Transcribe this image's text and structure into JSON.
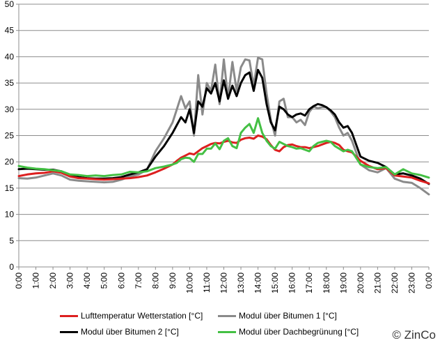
{
  "chart_data": {
    "type": "line",
    "ylim": [
      0,
      50
    ],
    "y_ticks": [
      "0",
      "5",
      "10",
      "15",
      "20",
      "25",
      "30",
      "35",
      "40",
      "45",
      "50"
    ],
    "x_ticks": [
      "0:00",
      "1:00",
      "2:00",
      "3:00",
      "4:00",
      "5:00",
      "6:00",
      "7:00",
      "8:00",
      "9:00",
      "10:00",
      "11:00",
      "12:00",
      "13:00",
      "14:00",
      "15:00",
      "16:00",
      "17:00",
      "18:00",
      "19:00",
      "20:00",
      "21:00",
      "22:00",
      "23:00",
      "0:00"
    ],
    "grid": "horizontal",
    "legend_position": "bottom",
    "x": [
      0,
      0.5,
      1,
      1.5,
      2,
      2.5,
      3,
      3.5,
      4,
      4.5,
      5,
      5.5,
      6,
      6.5,
      7,
      7.5,
      8,
      8.5,
      9,
      9.25,
      9.5,
      9.75,
      10,
      10.25,
      10.5,
      10.75,
      11,
      11.25,
      11.5,
      11.75,
      12,
      12.25,
      12.5,
      12.75,
      13,
      13.25,
      13.5,
      13.75,
      14,
      14.25,
      14.5,
      14.75,
      15,
      15.25,
      15.5,
      15.75,
      16,
      16.25,
      16.5,
      16.75,
      17,
      17.25,
      17.5,
      17.75,
      18,
      18.25,
      18.5,
      18.75,
      19,
      19.25,
      19.5,
      20,
      20.5,
      21,
      21.5,
      22,
      22.5,
      23,
      23.5,
      24
    ],
    "series": [
      {
        "name": "Lufttemperatur Wetterstation [°C]",
        "color": "#dd1f1f",
        "values": [
          17.3,
          17.6,
          17.8,
          17.9,
          18.2,
          17.9,
          17.2,
          16.9,
          16.8,
          16.7,
          16.6,
          16.7,
          16.8,
          16.9,
          17.1,
          17.4,
          18.0,
          18.7,
          19.5,
          20.2,
          20.8,
          21.2,
          21.6,
          21.4,
          22.0,
          22.6,
          23.0,
          23.4,
          23.6,
          23.5,
          23.8,
          24.0,
          23.7,
          23.6,
          24.2,
          24.5,
          24.6,
          24.4,
          25.0,
          24.8,
          24.3,
          23.2,
          22.3,
          22.0,
          22.8,
          23.2,
          23.3,
          23.0,
          22.8,
          22.8,
          22.6,
          22.8,
          23.0,
          23.3,
          23.6,
          23.8,
          23.6,
          23.2,
          22.3,
          22.0,
          21.8,
          20.2,
          19.2,
          18.6,
          18.8,
          17.4,
          17.2,
          17.0,
          16.4,
          15.9
        ]
      },
      {
        "name": "Modul über Bitumen 1 [°C]",
        "color": "#8a8a8a",
        "values": [
          16.9,
          16.8,
          17.0,
          17.4,
          17.8,
          17.4,
          16.6,
          16.4,
          16.3,
          16.2,
          16.1,
          16.2,
          16.6,
          17.2,
          17.6,
          18.5,
          22.0,
          24.5,
          27.5,
          30.0,
          32.5,
          30.2,
          31.5,
          25.0,
          36.5,
          29.0,
          35.0,
          33.5,
          38.5,
          31.0,
          39.5,
          32.0,
          39.0,
          33.5,
          38.0,
          39.5,
          39.3,
          34.5,
          39.8,
          39.5,
          33.0,
          28.0,
          25.0,
          31.5,
          32.0,
          28.5,
          28.5,
          27.5,
          28.0,
          27.0,
          29.5,
          30.5,
          30.2,
          30.4,
          30.4,
          29.6,
          28.5,
          26.5,
          25.0,
          25.5,
          24.0,
          19.5,
          18.4,
          18.0,
          18.8,
          16.8,
          16.2,
          16.0,
          15.0,
          13.8
        ]
      },
      {
        "name": "Modul über Bitumen 2 [°C]",
        "color": "#000000",
        "values": [
          18.6,
          18.7,
          18.6,
          18.5,
          18.5,
          18.2,
          17.3,
          17.1,
          16.9,
          16.8,
          16.8,
          16.9,
          17.1,
          17.6,
          18.0,
          18.6,
          21.0,
          23.0,
          25.5,
          27.0,
          28.5,
          27.5,
          30.0,
          25.5,
          31.5,
          30.5,
          34.0,
          33.0,
          35.0,
          31.5,
          35.5,
          32.0,
          34.5,
          32.5,
          35.0,
          36.5,
          37.0,
          33.5,
          37.5,
          36.0,
          31.0,
          27.5,
          26.0,
          30.5,
          30.0,
          29.0,
          28.5,
          29.0,
          29.2,
          28.8,
          30.0,
          30.6,
          31.0,
          30.8,
          30.4,
          29.8,
          29.0,
          27.5,
          26.5,
          26.8,
          25.5,
          21.0,
          20.2,
          19.8,
          19.0,
          17.6,
          17.8,
          17.4,
          16.8,
          15.8
        ]
      },
      {
        "name": "Modul über Dachbegrünung [°C]",
        "color": "#44c044",
        "values": [
          19.2,
          18.9,
          18.7,
          18.6,
          18.4,
          18.2,
          17.6,
          17.5,
          17.3,
          17.4,
          17.3,
          17.5,
          17.6,
          18.1,
          18.0,
          18.2,
          18.8,
          19.1,
          19.5,
          19.8,
          20.5,
          20.8,
          20.7,
          20.0,
          21.5,
          21.5,
          22.5,
          22.5,
          23.5,
          22.4,
          24.0,
          24.5,
          23.0,
          22.6,
          25.5,
          26.5,
          27.2,
          25.5,
          28.3,
          25.5,
          24.0,
          23.0,
          22.5,
          23.8,
          23.4,
          23.0,
          22.8,
          22.5,
          22.6,
          22.3,
          22.0,
          23.0,
          23.6,
          23.8,
          24.0,
          23.8,
          23.0,
          22.5,
          22.0,
          22.3,
          22.0,
          19.5,
          19.0,
          18.8,
          19.0,
          17.6,
          18.6,
          17.8,
          17.5,
          17.0
        ]
      }
    ],
    "legend": [
      "Lufttemperatur Wetterstation [°C]",
      "Modul über Bitumen 1 [°C]",
      "Modul über Bitumen 2 [°C]",
      "Modul über Dachbegrünung [°C]"
    ]
  },
  "copyright": "© ZinCo"
}
